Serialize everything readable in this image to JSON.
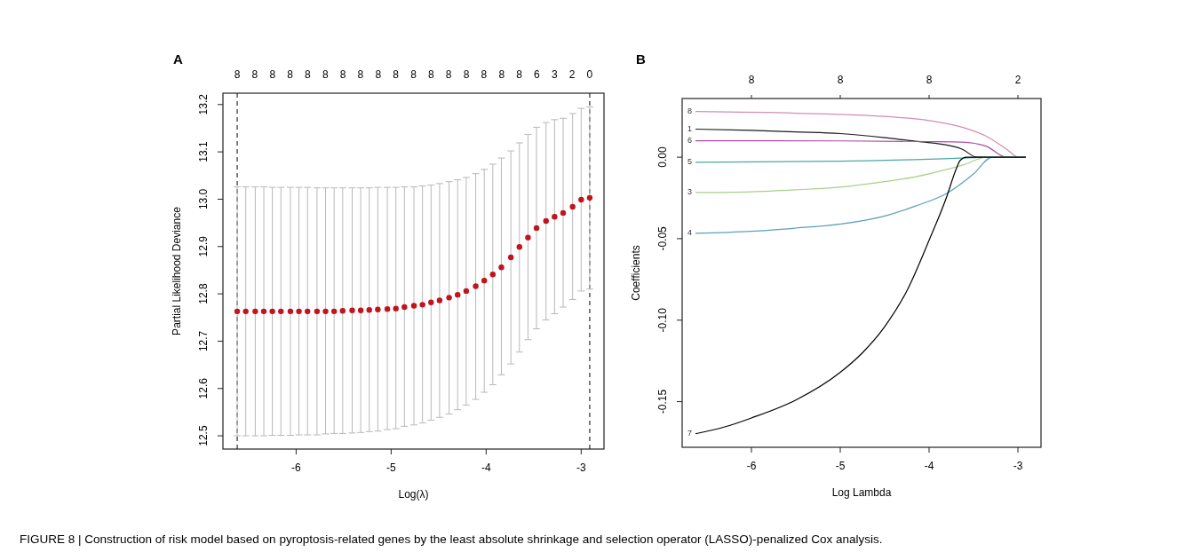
{
  "chart_data": [
    {
      "type": "scatter",
      "title": "A",
      "xlabel": "Log(λ)",
      "ylabel": "Partial Likelihood Deviance",
      "marker": "circle",
      "xlim": [
        -6.77,
        -2.76
      ],
      "ylim": [
        12.472,
        13.224
      ],
      "xticks": [
        -6,
        -5,
        -4,
        -3
      ],
      "yticks": [
        {
          "value": 12.5,
          "label": "12.5"
        },
        {
          "value": 12.6,
          "label": "12.6"
        },
        {
          "value": 12.7,
          "label": "12.7"
        },
        {
          "value": 12.8,
          "label": "12.8"
        },
        {
          "value": 12.9,
          "label": "12.9"
        },
        {
          "value": 13,
          "label": "13.0"
        },
        {
          "value": 13.1,
          "label": "13.1"
        },
        {
          "value": 13.2,
          "label": "13.2"
        }
      ],
      "ref_lines": [
        {
          "axis": "x",
          "value": -6.62,
          "color": "#000000",
          "line_style": "dashed"
        },
        {
          "axis": "x",
          "value": -2.91,
          "color": "#000000",
          "line_style": "dashed"
        }
      ],
      "series": [
        {
          "color": "#c0141e",
          "x": [
            -6.62,
            -6.53,
            -6.43,
            -6.34,
            -6.25,
            -6.16,
            -6.06,
            -5.97,
            -5.88,
            -5.78,
            -5.69,
            -5.6,
            -5.51,
            -5.41,
            -5.32,
            -5.23,
            -5.14,
            -5.04,
            -4.95,
            -4.86,
            -4.76,
            -4.67,
            -4.58,
            -4.49,
            -4.39,
            -4.3,
            -4.21,
            -4.11,
            -4.02,
            -3.93,
            -3.84,
            -3.74,
            -3.65,
            -3.56,
            -3.47,
            -3.37,
            -3.28,
            -3.19,
            -3.09,
            -3.0,
            -2.91
          ],
          "values": [
            12.763,
            12.763,
            12.763,
            12.763,
            12.763,
            12.763,
            12.763,
            12.763,
            12.763,
            12.763,
            12.763,
            12.763,
            12.764,
            12.765,
            12.765,
            12.766,
            12.767,
            12.768,
            12.769,
            12.772,
            12.775,
            12.777,
            12.782,
            12.786,
            12.792,
            12.798,
            12.806,
            12.816,
            12.828,
            12.841,
            12.856,
            12.877,
            12.899,
            12.919,
            12.939,
            12.954,
            12.963,
            12.971,
            12.984,
            12.999,
            13.003
          ],
          "errors": [
            [
              12.5,
              13.026
            ],
            [
              12.5,
              13.026
            ],
            [
              12.5,
              13.026
            ],
            [
              12.5,
              13.026
            ],
            [
              12.501,
              13.025
            ],
            [
              12.501,
              13.025
            ],
            [
              12.501,
              13.025
            ],
            [
              12.502,
              13.025
            ],
            [
              12.502,
              13.025
            ],
            [
              12.502,
              13.024
            ],
            [
              12.504,
              13.024
            ],
            [
              12.505,
              13.024
            ],
            [
              12.505,
              13.024
            ],
            [
              12.506,
              13.024
            ],
            [
              12.507,
              13.024
            ],
            [
              12.509,
              13.024
            ],
            [
              12.51,
              13.025
            ],
            [
              12.513,
              13.025
            ],
            [
              12.515,
              13.025
            ],
            [
              12.52,
              13.026
            ],
            [
              12.523,
              13.026
            ],
            [
              12.527,
              13.028
            ],
            [
              12.533,
              13.03
            ],
            [
              12.539,
              13.033
            ],
            [
              12.546,
              13.037
            ],
            [
              12.555,
              13.041
            ],
            [
              12.565,
              13.046
            ],
            [
              12.577,
              13.054
            ],
            [
              12.592,
              13.063
            ],
            [
              12.608,
              13.074
            ],
            [
              12.629,
              13.087
            ],
            [
              12.652,
              13.102
            ],
            [
              12.677,
              13.119
            ],
            [
              12.703,
              13.137
            ],
            [
              12.726,
              13.152
            ],
            [
              12.745,
              13.162
            ],
            [
              12.758,
              13.168
            ],
            [
              12.772,
              13.171
            ],
            [
              12.788,
              13.181
            ],
            [
              12.806,
              13.192
            ],
            [
              12.81,
              13.195
            ]
          ]
        }
      ],
      "annotations": [
        "8",
        "8",
        "8",
        "8",
        "8",
        "8",
        "8",
        "8",
        "8",
        "8",
        "8",
        "8",
        "8",
        "8",
        "8",
        "8",
        "8",
        "6",
        "3",
        "2",
        "0",
        "FIGURE 8 | Construction of risk model based on pyroptosis-related genes by the least absolute shrinkage and selection operator (LASSO)-penalized Cox analysis."
      ]
    },
    {
      "type": "line",
      "title": "B",
      "xlabel": "Log Lambda",
      "ylabel": "Coefficients",
      "xlim": [
        -6.78,
        -2.74
      ],
      "ylim": [
        -0.178,
        0.036
      ],
      "xticks": [
        -6,
        -5,
        -4,
        -3
      ],
      "yticks": [
        {
          "value": -0.15,
          "label": "-0.15"
        },
        {
          "value": -0.1,
          "label": "-0.10"
        },
        {
          "value": -0.05,
          "label": "-0.05"
        },
        {
          "value": 0,
          "label": "0.00"
        }
      ],
      "annotations": [
        "8",
        "8",
        "8",
        "2"
      ],
      "series": [
        {
          "name": "8",
          "color": "#d48cb4",
          "x": [
            -6.63,
            -5.5,
            -4.5,
            -4.0,
            -3.6,
            -3.36,
            -3.13,
            -2.99,
            -2.91
          ],
          "values": [
            0.028,
            0.027,
            0.025,
            0.0225,
            0.018,
            0.013,
            0.005,
            0,
            0
          ]
        },
        {
          "name": "1",
          "color": "#1a1a1a",
          "x": [
            -6.63,
            -6,
            -5.5,
            -5,
            -4.5,
            -4.16,
            -3.96,
            -3.63,
            -3.46,
            -2.91
          ],
          "values": [
            0.0172,
            0.0165,
            0.0155,
            0.0145,
            0.012,
            0.0098,
            0.0087,
            0.005,
            0,
            0
          ]
        },
        {
          "name": "6",
          "color": "#b04ca8",
          "x": [
            -6.63,
            -5,
            -4,
            -3.63,
            -3.36,
            -3.13,
            -2.91
          ],
          "values": [
            0.0101,
            0.01,
            0.0096,
            0.0093,
            0.0068,
            0,
            0
          ]
        },
        {
          "name": "5",
          "color": "#4aa8a0",
          "x": [
            -6.63,
            -5,
            -4,
            -3.5,
            -3.37,
            -2.91
          ],
          "values": [
            -0.0031,
            -0.0025,
            -0.0012,
            -0.0003,
            0,
            0
          ]
        },
        {
          "name": "3",
          "color": "#a8d08a",
          "x": [
            -6.63,
            -6,
            -5.5,
            -5,
            -4.5,
            -4.16,
            -3.8,
            -3.6,
            -3.36,
            -2.91
          ],
          "values": [
            -0.0217,
            -0.0212,
            -0.02,
            -0.0184,
            -0.015,
            -0.0121,
            -0.0075,
            -0.0045,
            0,
            0
          ]
        },
        {
          "name": "4",
          "color": "#5aa0c0",
          "x": [
            -6.63,
            -6,
            -5.5,
            -4.99,
            -4.46,
            -4.16,
            -3.79,
            -3.5,
            -3.29,
            -2.91
          ],
          "values": [
            -0.0467,
            -0.0455,
            -0.0435,
            -0.041,
            -0.0355,
            -0.0301,
            -0.0218,
            -0.0103,
            0,
            0
          ]
        },
        {
          "name": "7",
          "color": "#000000",
          "x": [
            -6.63,
            -6.3,
            -6,
            -5.5,
            -5,
            -4.75,
            -4.5,
            -4.25,
            -4,
            -3.8,
            -3.7,
            -3.65,
            -3.58,
            -2.91
          ],
          "values": [
            -0.1697,
            -0.1655,
            -0.16,
            -0.149,
            -0.132,
            -0.12,
            -0.104,
            -0.082,
            -0.051,
            -0.024,
            -0.008,
            -0.002,
            0,
            0
          ]
        }
      ]
    }
  ]
}
